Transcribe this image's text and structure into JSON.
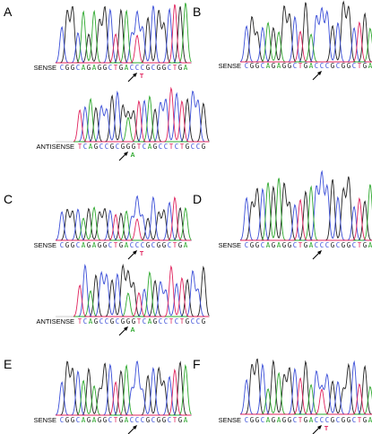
{
  "colors": {
    "A": "#2ea82e",
    "C": "#3b4fd8",
    "G": "#222222",
    "T": "#e0245e",
    "arrow": "#000000"
  },
  "panels": [
    {
      "label": "A",
      "traces": [
        {
          "strand": "SENSE",
          "sequence": "CGGCAGAGGCTGACCCGCGGCTGA",
          "arrowIndex": 14,
          "mutation": "T"
        },
        {
          "strand": "ANTISENSE",
          "sequence": "TCAGCCGCGGGTCAGCCTCTGCCG",
          "arrowIndex": 9,
          "mutation": "A"
        }
      ]
    },
    {
      "label": "B",
      "traces": [
        {
          "strand": "SENSE",
          "sequence": "CGGCAGAGGCTGACCCGCGGCTGA",
          "arrowIndex": 14,
          "mutation": ""
        }
      ]
    },
    {
      "label": "C",
      "traces": [
        {
          "strand": "SENSE",
          "sequence": "CGGCAGAGGCTGACCCGCGGCTGA",
          "arrowIndex": 14,
          "mutation": "T"
        },
        {
          "strand": "ANTISENSE",
          "sequence": "TCAGCCGCGGGTCAGCCTCTGCCG",
          "arrowIndex": 9,
          "mutation": "A"
        }
      ]
    },
    {
      "label": "D",
      "traces": [
        {
          "strand": "SENSE",
          "sequence": "CGGCAGAGGCTGACCCGCGGCTGA",
          "arrowIndex": 14,
          "mutation": ""
        }
      ]
    },
    {
      "label": "E",
      "traces": [
        {
          "strand": "SENSE",
          "sequence": "CGGCAGAGGCTGACCCGCGGCTGA",
          "arrowIndex": 14,
          "mutation": ""
        }
      ]
    },
    {
      "label": "F",
      "traces": [
        {
          "strand": "SENSE",
          "sequence": "CGGCAGAGGCTGACCCGCGGCTGA",
          "arrowIndex": 14,
          "mutation": "T"
        }
      ]
    }
  ]
}
